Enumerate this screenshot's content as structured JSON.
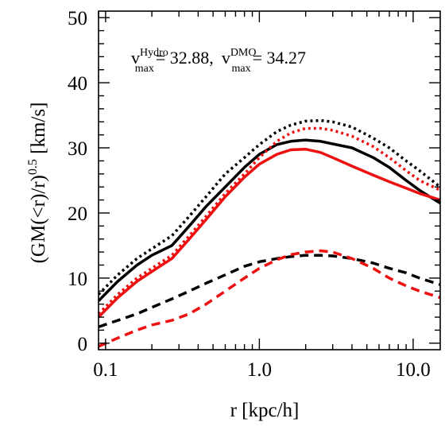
{
  "chart_data": {
    "type": "line",
    "title": "",
    "xlabel": "r [kpc/h]",
    "ylabel_parts": {
      "pre": "(GM(<r)/r)",
      "sup": "0.5",
      "post": " [km/s]"
    },
    "xscale": "log",
    "xlim": [
      0.09,
      15
    ],
    "ylim": [
      -1,
      51
    ],
    "x_ticks": [
      0.1,
      1.0,
      10.0
    ],
    "x_tick_labels": [
      "0.1",
      "1.0",
      "10.0"
    ],
    "y_ticks": [
      0,
      10,
      20,
      30,
      40,
      50
    ],
    "y_tick_labels": [
      "0",
      "10",
      "20",
      "30",
      "40",
      "50"
    ],
    "grid": false,
    "annotation": {
      "v1": "v",
      "sup1": "Hydro",
      "sub1": "max",
      "val1": "= 32.88,",
      "v2": "v",
      "sup2": "DMO",
      "sub2": "max",
      "val2": "= 34.27"
    },
    "series": [
      {
        "style": "solid",
        "color": "#000000",
        "x": [
          0.09,
          0.12,
          0.16,
          0.2,
          0.27,
          0.35,
          0.45,
          0.6,
          0.8,
          1.0,
          1.3,
          1.6,
          2.0,
          2.5,
          3.0,
          4.0,
          5.5,
          7.0,
          9.0,
          11.0,
          15.0
        ],
        "y": [
          6.5,
          9.5,
          12.0,
          13.5,
          15.0,
          18.0,
          21.0,
          24.0,
          27.0,
          29.0,
          30.5,
          31.0,
          31.2,
          31.0,
          30.6,
          30.0,
          28.5,
          27.0,
          25.0,
          23.5,
          21.5
        ]
      },
      {
        "style": "solid",
        "color": "#ee1111",
        "x": [
          0.09,
          0.12,
          0.16,
          0.2,
          0.27,
          0.35,
          0.45,
          0.6,
          0.8,
          1.0,
          1.3,
          1.6,
          2.0,
          2.5,
          3.0,
          4.0,
          5.5,
          7.0,
          9.0,
          11.0,
          15.0
        ],
        "y": [
          4.0,
          7.0,
          9.5,
          11.0,
          13.0,
          16.0,
          19.0,
          22.5,
          25.5,
          27.5,
          29.0,
          29.7,
          29.8,
          29.3,
          28.5,
          27.2,
          25.8,
          24.8,
          23.8,
          23.0,
          22.0
        ]
      },
      {
        "style": "dotted",
        "color": "#000000",
        "x": [
          0.09,
          0.12,
          0.16,
          0.2,
          0.27,
          0.35,
          0.45,
          0.6,
          0.8,
          1.0,
          1.3,
          1.6,
          2.0,
          2.5,
          3.0,
          4.0,
          5.5,
          7.0,
          9.0,
          11.0,
          15.0
        ],
        "y": [
          7.5,
          10.5,
          13.0,
          14.5,
          16.5,
          19.5,
          22.5,
          26.0,
          28.5,
          30.5,
          32.5,
          33.5,
          34.1,
          34.2,
          34.0,
          33.2,
          31.5,
          30.0,
          28.0,
          26.5,
          24.0
        ]
      },
      {
        "style": "dotted",
        "color": "#ee1111",
        "x": [
          0.09,
          0.12,
          0.16,
          0.2,
          0.27,
          0.35,
          0.45,
          0.6,
          0.8,
          1.0,
          1.3,
          1.6,
          2.0,
          2.5,
          3.0,
          4.0,
          5.5,
          7.0,
          9.0,
          11.0,
          15.0
        ],
        "y": [
          4.5,
          7.5,
          10.0,
          11.5,
          13.5,
          16.5,
          19.5,
          23.0,
          26.0,
          28.5,
          31.0,
          32.3,
          33.0,
          33.0,
          32.7,
          31.8,
          30.2,
          28.5,
          26.5,
          25.0,
          23.5
        ]
      },
      {
        "style": "dashed",
        "color": "#000000",
        "x": [
          0.09,
          0.12,
          0.16,
          0.2,
          0.27,
          0.35,
          0.45,
          0.6,
          0.8,
          1.0,
          1.3,
          1.6,
          2.0,
          2.5,
          3.0,
          4.0,
          5.5,
          7.0,
          9.0,
          11.0,
          15.0
        ],
        "y": [
          2.5,
          3.5,
          4.5,
          5.5,
          6.8,
          8.0,
          9.2,
          10.5,
          11.8,
          12.5,
          13.0,
          13.3,
          13.5,
          13.5,
          13.4,
          13.0,
          12.3,
          11.5,
          10.8,
          10.0,
          9.0
        ]
      },
      {
        "style": "dashed",
        "color": "#ee1111",
        "x": [
          0.09,
          0.12,
          0.16,
          0.2,
          0.27,
          0.35,
          0.45,
          0.6,
          0.8,
          1.0,
          1.3,
          1.6,
          2.0,
          2.5,
          3.0,
          4.0,
          5.5,
          7.0,
          9.0,
          11.0,
          15.0
        ],
        "y": [
          -0.5,
          0.8,
          2.0,
          2.8,
          3.5,
          4.5,
          6.0,
          8.0,
          10.0,
          11.5,
          12.8,
          13.6,
          14.0,
          14.2,
          14.0,
          13.0,
          11.5,
          10.0,
          8.8,
          8.0,
          7.0
        ]
      }
    ]
  }
}
